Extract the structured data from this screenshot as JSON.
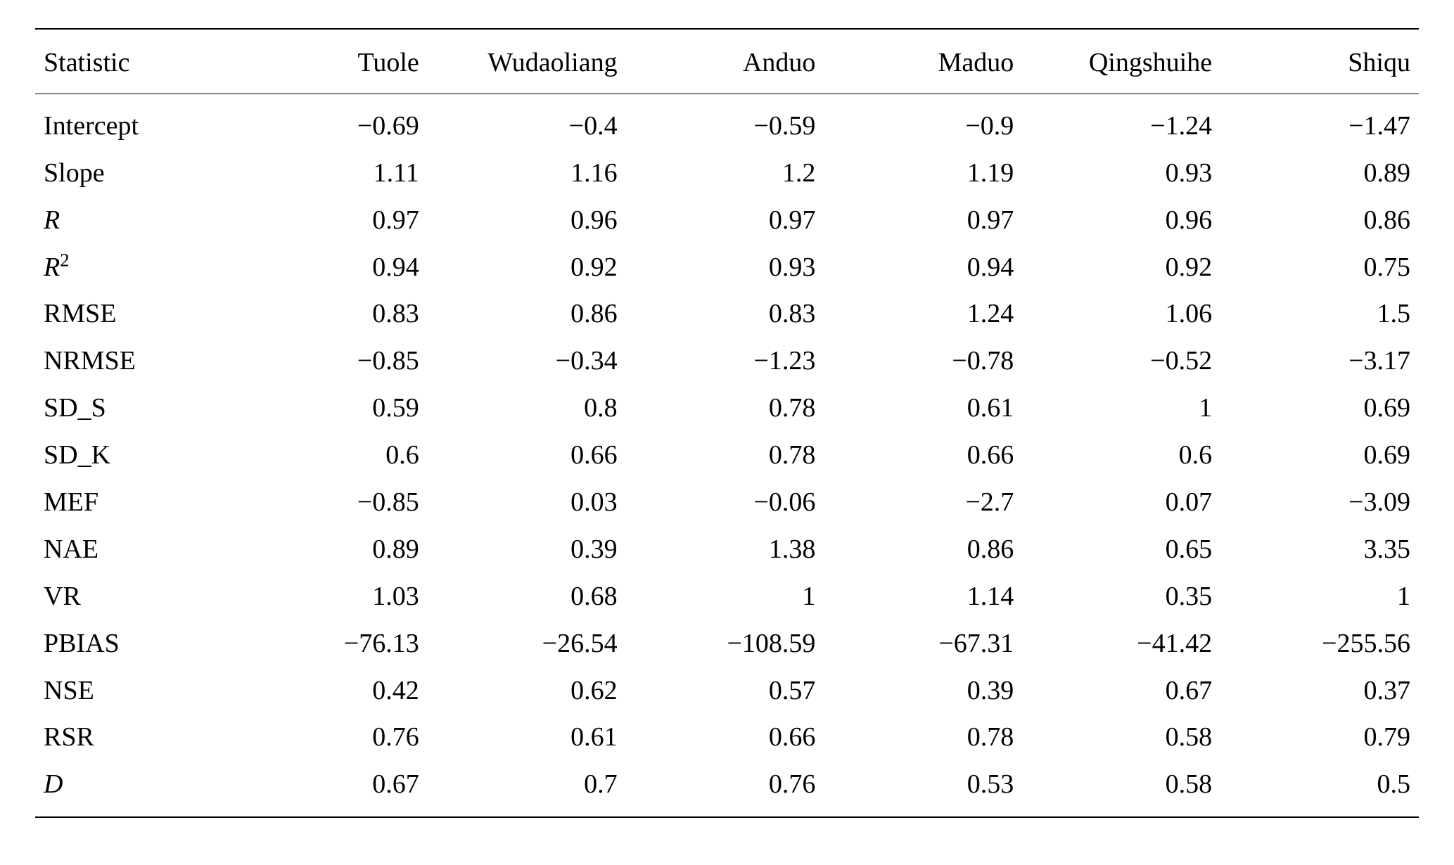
{
  "table": {
    "type": "table",
    "background_color": "#ffffff",
    "text_color": "#000000",
    "rule_color": "#000000",
    "font_family": "Times New Roman",
    "header_fontsize_pt": 28,
    "body_fontsize_pt": 28,
    "columns": [
      {
        "key": "stat",
        "label": "Statistic",
        "align": "left"
      },
      {
        "key": "tuole",
        "label": "Tuole",
        "align": "right"
      },
      {
        "key": "wudaoliang",
        "label": "Wudaoliang",
        "align": "right"
      },
      {
        "key": "anduo",
        "label": "Anduo",
        "align": "right"
      },
      {
        "key": "maduo",
        "label": "Maduo",
        "align": "right"
      },
      {
        "key": "qingshuihe",
        "label": "Qingshuihe",
        "align": "right"
      },
      {
        "key": "shiqu",
        "label": "Shiqu",
        "align": "right"
      }
    ],
    "rows": [
      {
        "stat": "Intercept",
        "stat_style": "plain",
        "tuole": "−0.69",
        "wudaoliang": "−0.4",
        "anduo": "−0.59",
        "maduo": "−0.9",
        "qingshuihe": "−1.24",
        "shiqu": "−1.47"
      },
      {
        "stat": "Slope",
        "stat_style": "plain",
        "tuole": "1.11",
        "wudaoliang": "1.16",
        "anduo": "1.2",
        "maduo": "1.19",
        "qingshuihe": "0.93",
        "shiqu": "0.89"
      },
      {
        "stat": "R",
        "stat_style": "italic",
        "tuole": "0.97",
        "wudaoliang": "0.96",
        "anduo": "0.97",
        "maduo": "0.97",
        "qingshuihe": "0.96",
        "shiqu": "0.86"
      },
      {
        "stat": "R",
        "stat_sup": "2",
        "stat_style": "italic",
        "tuole": "0.94",
        "wudaoliang": "0.92",
        "anduo": "0.93",
        "maduo": "0.94",
        "qingshuihe": "0.92",
        "shiqu": "0.75"
      },
      {
        "stat": "RMSE",
        "stat_style": "plain",
        "tuole": "0.83",
        "wudaoliang": "0.86",
        "anduo": "0.83",
        "maduo": "1.24",
        "qingshuihe": "1.06",
        "shiqu": "1.5"
      },
      {
        "stat": "NRMSE",
        "stat_style": "plain",
        "tuole": "−0.85",
        "wudaoliang": "−0.34",
        "anduo": "−1.23",
        "maduo": "−0.78",
        "qingshuihe": "−0.52",
        "shiqu": "−3.17"
      },
      {
        "stat": "SD_S",
        "stat_style": "plain",
        "tuole": "0.59",
        "wudaoliang": "0.8",
        "anduo": "0.78",
        "maduo": "0.61",
        "qingshuihe": "1",
        "shiqu": "0.69"
      },
      {
        "stat": "SD_K",
        "stat_style": "plain",
        "tuole": "0.6",
        "wudaoliang": "0.66",
        "anduo": "0.78",
        "maduo": "0.66",
        "qingshuihe": "0.6",
        "shiqu": "0.69"
      },
      {
        "stat": "MEF",
        "stat_style": "plain",
        "tuole": "−0.85",
        "wudaoliang": "0.03",
        "anduo": "−0.06",
        "maduo": "−2.7",
        "qingshuihe": "0.07",
        "shiqu": "−3.09"
      },
      {
        "stat": "NAE",
        "stat_style": "plain",
        "tuole": "0.89",
        "wudaoliang": "0.39",
        "anduo": "1.38",
        "maduo": "0.86",
        "qingshuihe": "0.65",
        "shiqu": "3.35"
      },
      {
        "stat": "VR",
        "stat_style": "plain",
        "tuole": "1.03",
        "wudaoliang": "0.68",
        "anduo": "1",
        "maduo": "1.14",
        "qingshuihe": "0.35",
        "shiqu": "1"
      },
      {
        "stat": "PBIAS",
        "stat_style": "plain",
        "tuole": "−76.13",
        "wudaoliang": "−26.54",
        "anduo": "−108.59",
        "maduo": "−67.31",
        "qingshuihe": "−41.42",
        "shiqu": "−255.56"
      },
      {
        "stat": "NSE",
        "stat_style": "plain",
        "tuole": "0.42",
        "wudaoliang": "0.62",
        "anduo": "0.57",
        "maduo": "0.39",
        "qingshuihe": "0.67",
        "shiqu": "0.37"
      },
      {
        "stat": "RSR",
        "stat_style": "plain",
        "tuole": "0.76",
        "wudaoliang": "0.61",
        "anduo": "0.66",
        "maduo": "0.78",
        "qingshuihe": "0.58",
        "shiqu": "0.79"
      },
      {
        "stat": "D",
        "stat_style": "italic",
        "tuole": "0.67",
        "wudaoliang": "0.7",
        "anduo": "0.76",
        "maduo": "0.53",
        "qingshuihe": "0.58",
        "shiqu": "0.5"
      }
    ]
  }
}
